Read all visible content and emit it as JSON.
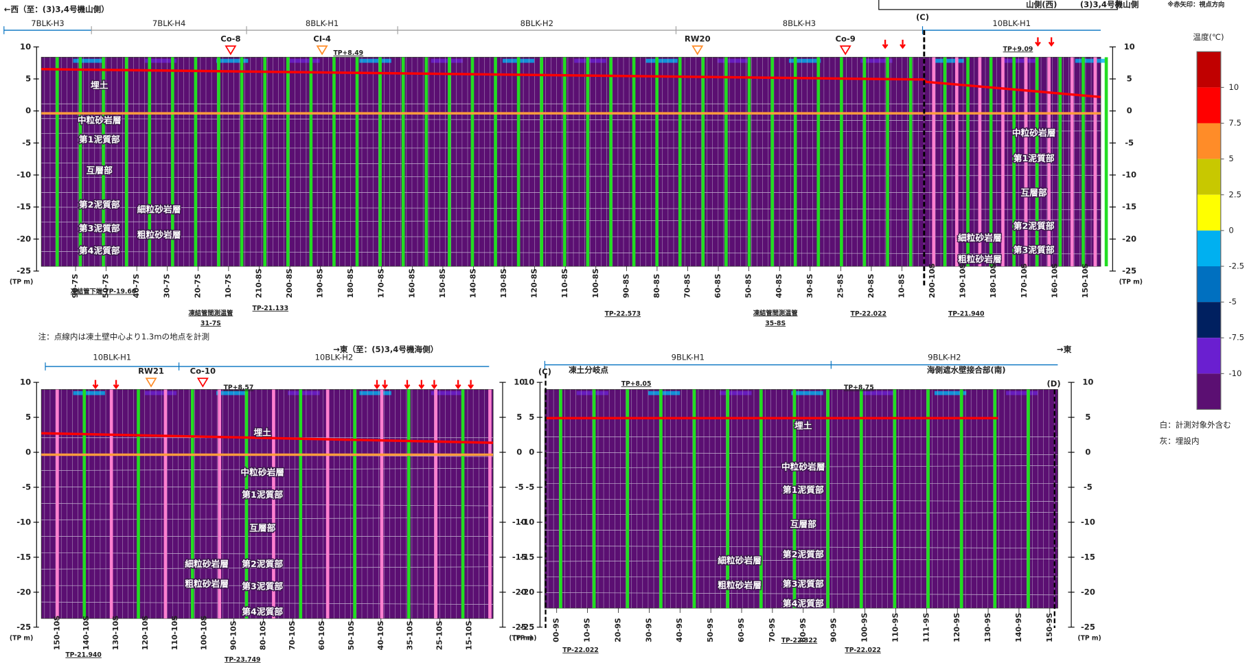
{
  "header": {
    "west_label": "←西（至：(3)3,4号機山側）",
    "top_labels": [
      "山側(西)",
      "(3)3,4号機山側",
      "※赤矢印：視点方向"
    ],
    "note": "注：点線内は凍土壁中心より1.3mの地点を計測"
  },
  "depth_axis": {
    "ticks": [
      10,
      5,
      0,
      -5,
      -10,
      -15,
      -20,
      -25
    ],
    "unit": "(TP m)"
  },
  "legend": {
    "title": "温度(℃)",
    "ticks": [
      10,
      7.5,
      5,
      2.5,
      0,
      -2.5,
      -5,
      -7.5,
      -10
    ],
    "colors": [
      "#c00000",
      "#ff0000",
      "#ff8c28",
      "#c8c800",
      "#ffff00",
      "#00b0f0",
      "#0070c0",
      "#002060",
      "#6a1fd0",
      "#5b0f72"
    ],
    "notes": [
      "白：計測対象外含む",
      "灰：埋設内"
    ]
  },
  "panels": [
    {
      "edge_labels": [
        "(C)"
      ],
      "blocks": [
        {
          "label": "7BLK-H3",
          "color": "#0070c0"
        },
        {
          "label": "7BLK-H4",
          "color": "#a0a0a0"
        },
        {
          "label": "8BLK-H1",
          "color": "#a0a0a0"
        },
        {
          "label": "8BLK-H2",
          "color": "#a0a0a0"
        },
        {
          "label": "8BLK-H3",
          "color": "#a0a0a0"
        },
        {
          "label": "10BLK-H1",
          "color": "#0070c0"
        }
      ],
      "markers": [
        {
          "label": "Co-8",
          "color": "#ff0000"
        },
        {
          "label": "CI-4",
          "color": "#ff8c28"
        },
        {
          "label": "RW20",
          "color": "#ff8c28"
        },
        {
          "label": "Co-9",
          "color": "#ff0000"
        }
      ],
      "layers": [
        "埋土",
        "中粒砂岩層",
        "第1泥質部",
        "互層部",
        "第2泥質部",
        "細粒砂岩層",
        "第3泥質部",
        "粗粒砂岩層",
        "第4泥質部",
        "中粒砂岩層",
        "第1泥質部",
        "互層部",
        "第2泥質部",
        "細粒砂岩層",
        "第3泥質部",
        "粗粒砂岩層"
      ],
      "pipes": [
        "90-7S",
        "50-7S",
        "40-7S",
        "30-7S",
        "20-7S",
        "10-7S",
        "210-8S",
        "200-8S",
        "190-8S",
        "180-8S",
        "170-8S",
        "160-8S",
        "150-8S",
        "140-8S",
        "130-8S",
        "120-8S",
        "110-8S",
        "100-8S",
        "90-8S",
        "80-8S",
        "70-8S",
        "60-8S",
        "50-8S",
        "40-8S",
        "30-8S",
        "25-8S",
        "20-8S",
        "10-8S",
        "200-10S",
        "190-10S",
        "180-10S",
        "170-10S",
        "160-10S",
        "150-10S"
      ],
      "annotations": [
        "TP+8.49",
        "TP+9.09",
        "TP-21.133",
        "TP-22.573",
        "TP-22.022",
        "TP-21.940",
        "凍結管間測温管",
        "31-7S",
        "凍結管間測温管",
        "35-8S",
        "凍結管下端 TP-19.60"
      ]
    },
    {
      "edge_labels": [
        "→東（至：(5)3,4号機海側）"
      ],
      "blocks": [
        {
          "label": "10BLK-H1",
          "color": "#0070c0"
        },
        {
          "label": "10BLK-H2",
          "color": "#0070c0"
        }
      ],
      "markers": [
        {
          "label": "RW21",
          "color": "#ff8c28"
        },
        {
          "label": "Co-10",
          "color": "#ff0000"
        }
      ],
      "layers": [
        "埋土",
        "中粒砂岩層",
        "第1泥質部",
        "互層部",
        "細粒砂岩層",
        "第2泥質部",
        "粗粒砂岩層",
        "第3泥質部",
        "第4泥質部"
      ],
      "pipes": [
        "150-10S",
        "140-10S",
        "130-10S",
        "120-10S",
        "110-10S",
        "100-10S",
        "90-10S",
        "80-10S",
        "70-10S",
        "60-10S",
        "50-10S",
        "40-10S",
        "35-10S",
        "25-10S",
        "15-10S"
      ],
      "annotations": [
        "TP+8.57",
        "TP-21.940",
        "TP-23.749"
      ]
    },
    {
      "edge_labels": [
        "(C)",
        "(D)",
        "→東",
        "凍土分岐点",
        "海側遮水壁接合部(南)"
      ],
      "blocks": [
        {
          "label": "9BLK-H1",
          "color": "#0070c0"
        },
        {
          "label": "9BLK-H2",
          "color": "#0070c0"
        }
      ],
      "markers": [],
      "layers": [
        "埋土",
        "中粒砂岩層",
        "第1泥質部",
        "互層部",
        "第2泥質部",
        "細粒砂岩層",
        "第3泥質部",
        "粗粒砂岩層",
        "第4泥質部"
      ],
      "pipes": [
        "00-9S",
        "10-9S",
        "20-9S",
        "30-9S",
        "40-9S",
        "50-9S",
        "60-9S",
        "70-9S",
        "80-9S",
        "90-9S",
        "100-9S",
        "110-9S",
        "111-9S",
        "120-9S",
        "130-9S",
        "140-9S",
        "150-9S"
      ],
      "annotations": [
        "TP+8.05",
        "TP+8.75",
        "TP-22.022",
        "TP-22.322",
        "TP-22.022"
      ]
    }
  ]
}
